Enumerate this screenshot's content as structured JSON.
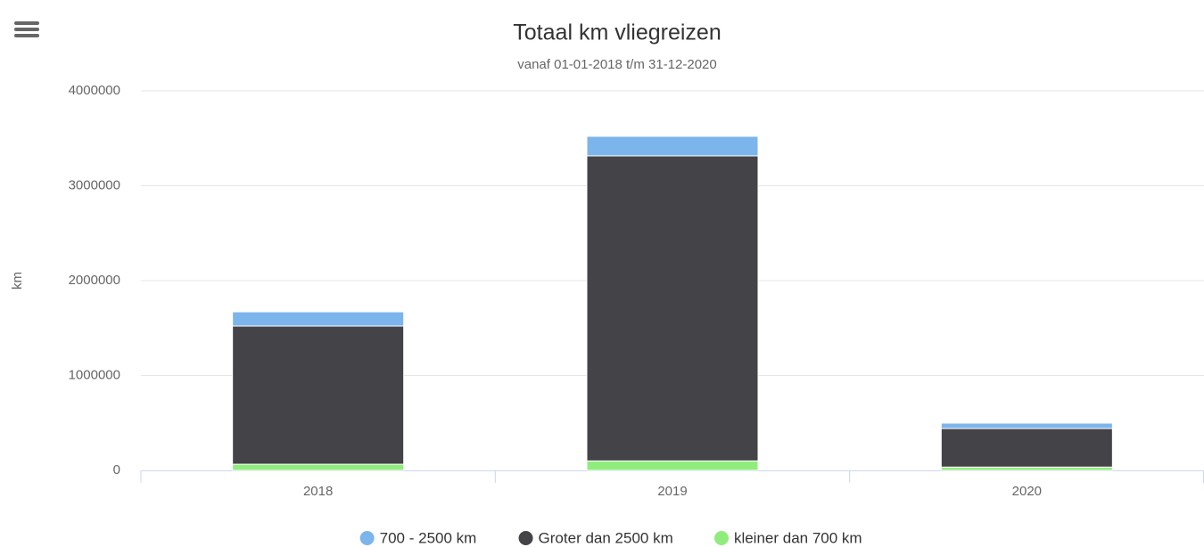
{
  "chart_data": {
    "type": "stacked_bar",
    "title": "Totaal km vliegreizen",
    "subtitle": "vanaf 01-01-2018 t/m 31-12-2020",
    "y_axis_label": "km",
    "categories": [
      "2018",
      "2019",
      "2020"
    ],
    "series": [
      {
        "name": "700 - 2500 km",
        "color": "#7cb5ec",
        "values": [
          150000,
          206000,
          57000
        ]
      },
      {
        "name": "Groter dan 2500 km",
        "color": "#434348",
        "values": [
          1456000,
          3215000,
          406000
        ]
      },
      {
        "name": "kleiner dan 700 km",
        "color": "#90ed7d",
        "values": [
          65000,
          100000,
          35000
        ]
      }
    ],
    "ylim": [
      0,
      4000000
    ],
    "yticks": [
      0,
      1000000,
      2000000,
      3000000,
      4000000
    ],
    "grid": true,
    "legend": "bottom"
  }
}
